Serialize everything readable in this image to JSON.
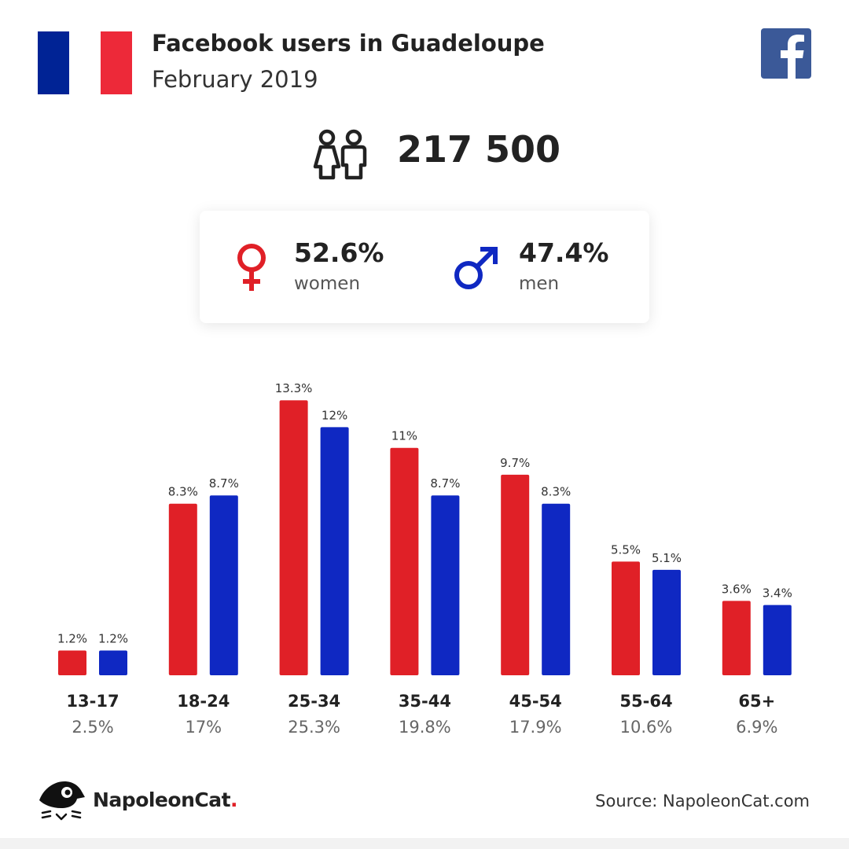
{
  "header": {
    "title": "Facebook users in Guadeloupe",
    "subtitle": "February 2019"
  },
  "flag": {
    "name": "france-flag",
    "colors": [
      "#002395",
      "#ffffff",
      "#ED2939"
    ]
  },
  "total_users": "217 500",
  "gender": {
    "women": {
      "pct": "52.6%",
      "label": "women",
      "color": "#e02027",
      "icon": "female-symbol-icon"
    },
    "men": {
      "pct": "47.4%",
      "label": "men",
      "color": "#0f28c2",
      "icon": "male-symbol-icon"
    }
  },
  "footer": {
    "brand": "NapoleonCat",
    "brand_dot": ".",
    "source": "Source: NapoleonCat.com"
  },
  "colors": {
    "women": "#e02027",
    "men": "#0f28c2",
    "facebook": "#3b5998"
  },
  "chart_data": {
    "type": "bar",
    "categories": [
      "13-17",
      "18-24",
      "25-34",
      "35-44",
      "45-54",
      "55-64",
      "65+"
    ],
    "category_totals": [
      "2.5%",
      "17%",
      "25.3%",
      "19.8%",
      "17.9%",
      "10.6%",
      "6.9%"
    ],
    "series": [
      {
        "key": "women",
        "values": [
          1.2,
          8.3,
          13.3,
          11,
          9.7,
          5.5,
          3.6
        ],
        "labels": [
          "1.2%",
          "8.3%",
          "13.3%",
          "11%",
          "9.7%",
          "5.5%",
          "3.6%"
        ]
      },
      {
        "key": "men",
        "values": [
          1.2,
          8.7,
          12,
          8.7,
          8.3,
          5.1,
          3.4
        ],
        "labels": [
          "1.2%",
          "8.7%",
          "12%",
          "8.7%",
          "8.3%",
          "5.1%",
          "3.4%"
        ]
      }
    ],
    "title": "",
    "xlabel": "",
    "ylabel": "",
    "grid": false,
    "legend": "none"
  }
}
